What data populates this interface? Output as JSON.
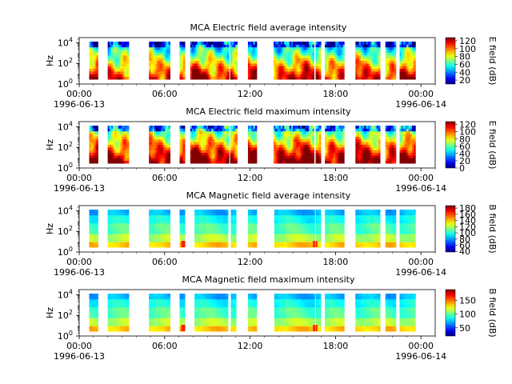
{
  "chart_data": [
    {
      "type": "heatmap",
      "title": "MCA  Electric field average intensity",
      "ylabel": "Hz",
      "colorbar_label": "E field (dB)",
      "colorbar_ticks": [
        "120",
        "100",
        "80",
        "60",
        "40",
        "20"
      ],
      "colorbar_tick_values": [
        120,
        100,
        80,
        60,
        40,
        20
      ],
      "colorbar_range": [
        10,
        128
      ],
      "y_ticks": [
        "10^4",
        "10^2",
        "10^0"
      ],
      "x_ticks": [
        "00:00\n1996-06-13",
        "06:00",
        "12:00",
        "18:00",
        "00:00\n1996-06-14"
      ],
      "variant": "E"
    },
    {
      "type": "heatmap",
      "title": "MCA  Electric field maximum intensity",
      "ylabel": "Hz",
      "colorbar_label": "E field (dB)",
      "colorbar_ticks": [
        "120",
        "100",
        "80",
        "60",
        "40",
        "20",
        "0"
      ],
      "colorbar_tick_values": [
        120,
        100,
        80,
        60,
        40,
        20,
        0
      ],
      "colorbar_range": [
        0,
        128
      ],
      "y_ticks": [
        "10^4",
        "10^2",
        "10^0"
      ],
      "x_ticks": [
        "00:00\n1996-06-13",
        "06:00",
        "12:00",
        "18:00",
        "00:00\n1996-06-14"
      ],
      "variant": "E"
    },
    {
      "type": "heatmap",
      "title": "MCA  Magnetic field average intensity",
      "ylabel": "Hz",
      "colorbar_label": "B field (dB)",
      "colorbar_ticks": [
        "180",
        "160",
        "140",
        "120",
        "100",
        "80",
        "60",
        "40"
      ],
      "colorbar_tick_values": [
        180,
        160,
        140,
        120,
        100,
        80,
        60,
        40
      ],
      "colorbar_range": [
        38,
        188
      ],
      "y_ticks": [
        "10^4",
        "10^2",
        "10^0"
      ],
      "x_ticks": [
        "00:00\n1996-06-13",
        "06:00",
        "12:00",
        "18:00",
        "00:00\n1996-06-14"
      ],
      "variant": "B"
    },
    {
      "type": "heatmap",
      "title": "MCA  Magnetic field maximum intensity",
      "ylabel": "Hz",
      "colorbar_label": "B field (dB)",
      "colorbar_ticks": [
        "150",
        "100",
        "50"
      ],
      "colorbar_tick_values": [
        150,
        100,
        50
      ],
      "colorbar_range": [
        20,
        190
      ],
      "y_ticks": [
        "10^4",
        "10^2",
        "10^0"
      ],
      "x_ticks": [
        "00:00\n1996-06-13",
        "06:00",
        "12:00",
        "18:00",
        "00:00\n1996-06-14"
      ],
      "variant": "B"
    }
  ],
  "x_axis": {
    "start": "1996-06-13 00:00",
    "end": "1996-06-14 00:00",
    "data_gaps_hours": [
      [
        [
          0.0,
          2.0
        ],
        [
          3.4,
          4.9
        ],
        [
          6.35,
          7.05
        ],
        [
          7.3,
          7.8
        ],
        [
          10.4,
          10.6
        ],
        [
          11.0,
          11.85
        ],
        [
          12.4,
          13.65
        ],
        [
          16.45,
          16.6
        ],
        [
          16.95,
          17.25
        ]
      ],
      [
        [
          0.0,
          2.0
        ],
        [
          3.4,
          4.9
        ],
        [
          6.35,
          7.05
        ],
        [
          7.3,
          7.8
        ],
        [
          10.4,
          10.6
        ],
        [
          11.0,
          11.85
        ],
        [
          12.4,
          13.65
        ],
        [
          16.45,
          16.6
        ],
        [
          16.95,
          17.25
        ]
      ]
    ]
  }
}
